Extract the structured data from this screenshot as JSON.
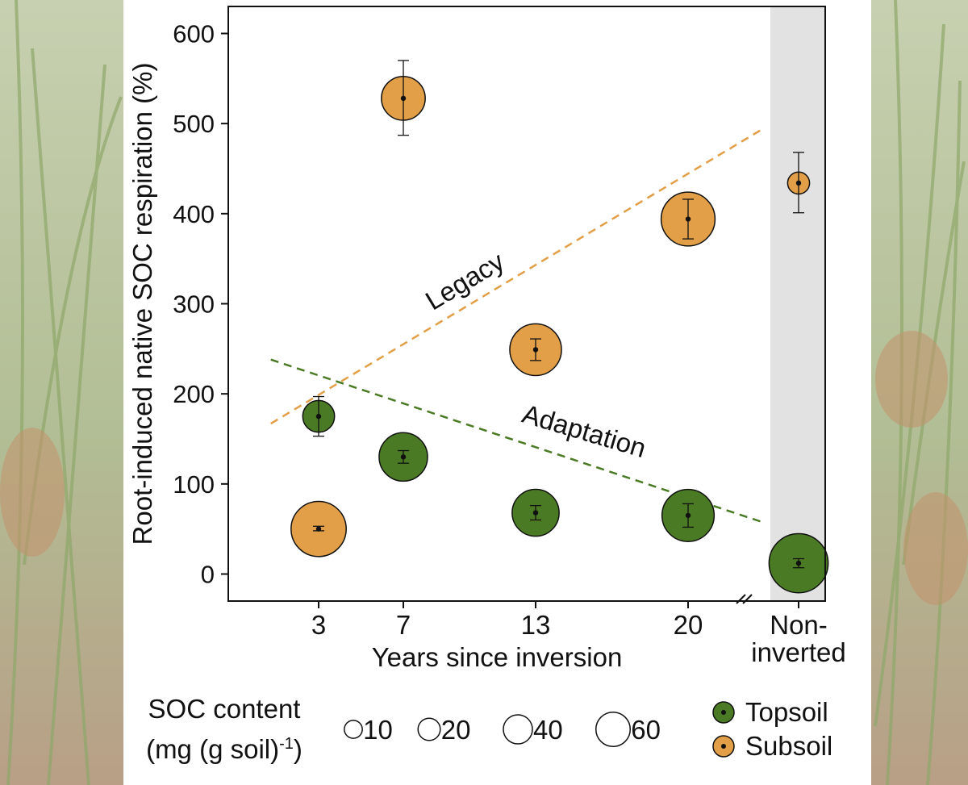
{
  "chart_data": {
    "type": "scatter",
    "title": "",
    "ylabel": "Root-induced native SOC respiration (%)",
    "xlabel": "Years since inversion",
    "ylim": [
      -30,
      630
    ],
    "yticks": [
      0,
      100,
      200,
      300,
      400,
      500,
      600
    ],
    "categories": [
      "3",
      "7",
      "13",
      "20",
      "Non-inverted"
    ],
    "category_labels": [
      [
        "3"
      ],
      [
        "7"
      ],
      [
        "13"
      ],
      [
        "20"
      ],
      [
        "Non-",
        "inverted"
      ]
    ],
    "axis_break": "//",
    "shaded_category": "Non-inverted",
    "series": [
      {
        "name": "Topsoil",
        "color": "#4a7a23",
        "points": [
          {
            "x": "3",
            "y": 175,
            "err_low": 153,
            "err_high": 197,
            "soc": 13
          },
          {
            "x": "7",
            "y": 130,
            "err_low": 123,
            "err_high": 137,
            "soc": 40
          },
          {
            "x": "13",
            "y": 68,
            "err_low": 60,
            "err_high": 76,
            "soc": 37
          },
          {
            "x": "20",
            "y": 65,
            "err_low": 52,
            "err_high": 78,
            "soc": 48
          },
          {
            "x": "Non-inverted",
            "y": 12,
            "err_low": 7,
            "err_high": 17,
            "soc": 65
          }
        ]
      },
      {
        "name": "Subsoil",
        "color": "#e29f47",
        "points": [
          {
            "x": "3",
            "y": 50,
            "err_low": 48,
            "err_high": 53,
            "soc": 55
          },
          {
            "x": "7",
            "y": 528,
            "err_low": 487,
            "err_high": 570,
            "soc": 31
          },
          {
            "x": "13",
            "y": 249,
            "err_low": 237,
            "err_high": 261,
            "soc": 47
          },
          {
            "x": "20",
            "y": 394,
            "err_low": 372,
            "err_high": 416,
            "soc": 52
          },
          {
            "x": "Non-inverted",
            "y": 434,
            "err_low": 401,
            "err_high": 468,
            "soc": 4
          }
        ]
      }
    ],
    "trend_lines": [
      {
        "name": "Legacy",
        "color": "#e29f47",
        "x_start": 0.8,
        "y_start": 167,
        "x_end": 23.5,
        "y_end": 495
      },
      {
        "name": "Adaptation",
        "color": "#4a7a23",
        "x_start": 0.8,
        "y_start": 238,
        "x_end": 23.5,
        "y_end": 57
      }
    ],
    "size_legend": {
      "title_line1": "SOC content",
      "title_line2": "(mg (g soil)",
      "title_sup": "-1",
      "title_end": ")",
      "values": [
        10,
        20,
        40,
        60
      ],
      "labels": [
        "10",
        "20",
        "40",
        "60"
      ]
    },
    "color_legend": [
      "Topsoil",
      "Subsoil"
    ]
  }
}
